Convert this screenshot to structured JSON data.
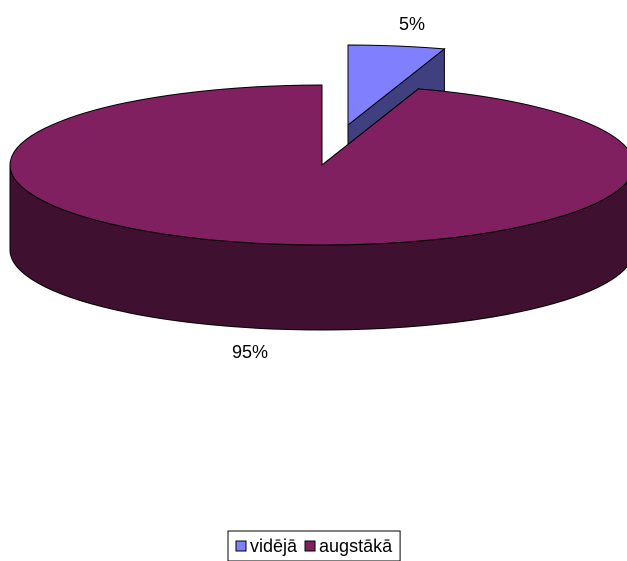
{
  "chart_data": {
    "type": "pie",
    "style": "3d",
    "categories": [
      "vidējā",
      "augstākā"
    ],
    "values": [
      5,
      95
    ],
    "value_labels": [
      "5%",
      "95%"
    ],
    "colors": [
      "#8080ff",
      "#802060"
    ],
    "legend": "bottom"
  }
}
